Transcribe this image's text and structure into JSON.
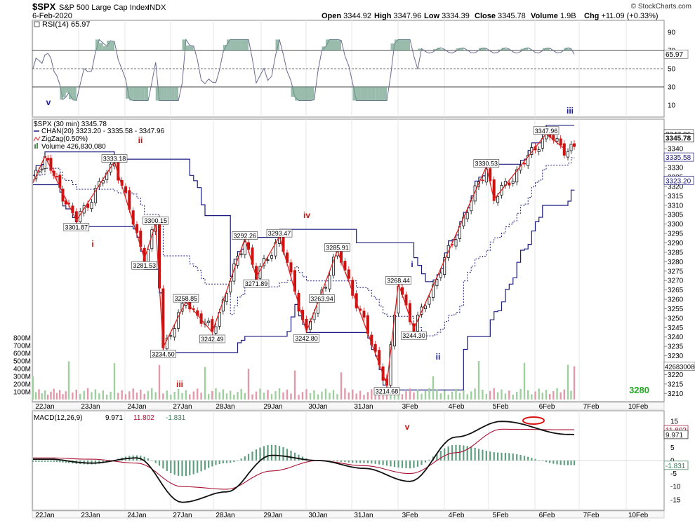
{
  "header": {
    "symbol": "$SPX",
    "name": "S&P 500 Large Cap Index",
    "exchange": "INDX",
    "date": "6-Feb-2020",
    "watermark": "© StockCharts.com",
    "ohlc": [
      {
        "label": "Open",
        "value": "3344.92"
      },
      {
        "label": "High",
        "value": "3347.96"
      },
      {
        "label": "Low",
        "value": "3334.39"
      },
      {
        "label": "Close",
        "value": "3345.78"
      },
      {
        "label": "Volume",
        "value": "1.9B"
      },
      {
        "label": "Chg",
        "value": "+11.09 (+0.33%)"
      }
    ]
  },
  "rsi": {
    "legend": "RSI(14) 65.97",
    "value": 65.97,
    "value_label": "65.97",
    "ticks": [
      90,
      70,
      50,
      30,
      10
    ],
    "levels": [
      70,
      50,
      30
    ],
    "range": [
      0,
      100
    ]
  },
  "price": {
    "legend_title": "$SPX (30 min) 3345.78",
    "legend_chan": "CHAN(20) 3323.20 - 3335.58 - 3347.96",
    "legend_zigzag": "ZigZag(0.50%)",
    "legend_volume": "Volume 426,830,080",
    "right_labels": [
      {
        "text": "3347.96",
        "value": 3347.96
      },
      {
        "text": "3345.78",
        "value": 3345.78
      },
      {
        "text": "3335.58",
        "value": 3335.58
      },
      {
        "text": "3323.20",
        "value": 3323.2
      }
    ],
    "volume_last_label": "426830080",
    "range": [
      3207.5,
      3352
    ],
    "ticks": [
      3340,
      3335,
      3330,
      3325,
      3320,
      3315,
      3310,
      3305,
      3300,
      3295,
      3290,
      3285,
      3280,
      3275,
      3270,
      3265,
      3260,
      3255,
      3250,
      3245,
      3240,
      3235,
      3230,
      3225,
      3220,
      3215,
      3210
    ],
    "volume_ticks": [
      "800M",
      "700M",
      "600M",
      "500M",
      "400M",
      "300M",
      "200M",
      "100M"
    ],
    "target_label": "3280",
    "colors": {
      "up": "#111111",
      "down": "#cc1111",
      "zigzag": "#dd2222",
      "channel": "#1a1a80",
      "vol_up": "#9fcf9f",
      "vol_down": "#e29aaa",
      "target": "#22aa22",
      "wave_blue": "#1a1aa0",
      "wave_red": "#cc1111"
    }
  },
  "x_labels": [
    "22Jan",
    "23Jan",
    "24Jan",
    "27Jan",
    "28Jan",
    "29Jan",
    "30Jan",
    "31Jan",
    "3Feb",
    "4Feb",
    "5Feb",
    "6Feb",
    "7Feb",
    "10Feb"
  ],
  "chart_data": [
    {
      "type": "line",
      "title": "RSI(14)",
      "x": [
        "22Jan",
        "23Jan",
        "24Jan",
        "27Jan",
        "28Jan",
        "29Jan",
        "30Jan",
        "31Jan",
        "3Feb",
        "4Feb",
        "5Feb",
        "6Feb"
      ],
      "series": [
        {
          "name": "RSI(14)",
          "values": [
            62,
            48,
            55,
            28,
            40,
            58,
            50,
            42,
            35,
            58,
            72,
            66
          ]
        }
      ],
      "ylim": [
        0,
        100
      ]
    },
    {
      "type": "line",
      "title": "$SPX (30 min) 3345.78",
      "x": [
        "22Jan",
        "23Jan",
        "24Jan",
        "27Jan",
        "28Jan",
        "29Jan",
        "30Jan",
        "31Jan",
        "3Feb",
        "4Feb",
        "5Feb",
        "6Feb"
      ],
      "zigzag_points": [
        {
          "label": "",
          "value": 3322,
          "time": "21Jan"
        },
        {
          "label": "",
          "value": 3336,
          "time": "22Jan"
        },
        {
          "label": "3301.87",
          "value": 3301.87,
          "time": "23Jan"
        },
        {
          "label": "3333.18",
          "value": 3333.18,
          "time": "24Jan"
        },
        {
          "label": "3281.53",
          "value": 3281.53,
          "time": "24Jan"
        },
        {
          "label": "3300.15",
          "value": 3300.15,
          "time": "24Jan"
        },
        {
          "label": "3234.50",
          "value": 3234.5,
          "time": "27Jan"
        },
        {
          "label": "3258.85",
          "value": 3258.85,
          "time": "27Jan"
        },
        {
          "label": "3242.49",
          "value": 3242.49,
          "time": "28Jan"
        },
        {
          "label": "3292.26",
          "value": 3292.26,
          "time": "29Jan"
        },
        {
          "label": "3271.89",
          "value": 3271.89,
          "time": "29Jan"
        },
        {
          "label": "3293.47",
          "value": 3293.47,
          "time": "30Jan"
        },
        {
          "label": "3242.80",
          "value": 3242.8,
          "time": "30Jan"
        },
        {
          "label": "3263.94",
          "value": 3263.94,
          "time": "30Jan"
        },
        {
          "label": "3285.91",
          "value": 3285.91,
          "time": "31Jan"
        },
        {
          "label": "3214.68",
          "value": 3214.68,
          "time": "3Feb"
        },
        {
          "label": "3268.44",
          "value": 3268.44,
          "time": "3Feb"
        },
        {
          "label": "3244.30",
          "value": 3244.3,
          "time": "3Feb"
        },
        {
          "label": "3330.53",
          "value": 3330.53,
          "time": "5Feb"
        },
        {
          "label": "",
          "value": 3313,
          "time": "5Feb"
        },
        {
          "label": "3347.96",
          "value": 3347.96,
          "time": "6Feb"
        },
        {
          "label": "",
          "value": 3340,
          "time": "6Feb"
        }
      ],
      "wave_labels": [
        {
          "text": "v",
          "color": "blue"
        },
        {
          "text": "i",
          "color": "red"
        },
        {
          "text": "ii",
          "color": "red"
        },
        {
          "text": "iii",
          "color": "red"
        },
        {
          "text": "iv",
          "color": "red"
        },
        {
          "text": "v",
          "color": "red"
        },
        {
          "text": "i",
          "color": "blue"
        },
        {
          "text": "ii",
          "color": "blue"
        },
        {
          "text": "iii",
          "color": "blue"
        }
      ],
      "ylim": [
        3207.5,
        3352
      ]
    },
    {
      "type": "line",
      "title": "MACD(12,26,9) 9.971, 11.802, -1.831",
      "x": [
        "22Jan",
        "23Jan",
        "24Jan",
        "27Jan",
        "28Jan",
        "29Jan",
        "30Jan",
        "31Jan",
        "3Feb",
        "4Feb",
        "5Feb",
        "6Feb"
      ],
      "series": [
        {
          "name": "MACD(12,26,9)",
          "values": [
            0.5,
            -1,
            1,
            -16,
            -12,
            2,
            0,
            -3,
            -8,
            9,
            15,
            10
          ]
        },
        {
          "name": "signal",
          "values": [
            1,
            0.5,
            -1,
            -10,
            -11,
            -4,
            0,
            -2,
            -5,
            3,
            12,
            11.8
          ]
        },
        {
          "name": "histogram",
          "values": [
            -0.5,
            -1.5,
            2,
            -6,
            -1,
            6,
            0,
            -1,
            -3,
            6,
            3,
            -1.8
          ]
        }
      ],
      "ylim": [
        -18,
        18
      ]
    }
  ],
  "macd": {
    "legend_title": "MACD(12,26,9)",
    "legend_macd": "9.971",
    "legend_signal": "11.802",
    "legend_hist": "-1.831",
    "ticks": [
      "15",
      "10",
      "5",
      "0",
      "-5",
      "-10",
      "-15"
    ],
    "right_labels": [
      {
        "text": "11.802",
        "value": 11.802
      },
      {
        "text": "9.971",
        "value": 9.971
      },
      {
        "text": "-1.831",
        "value": -1.831
      }
    ],
    "range": [
      -18,
      18
    ],
    "colors": {
      "macd": "#111111",
      "signal": "#aa1133",
      "hist": "#5f9f7f",
      "ellipse": "#dd1111"
    }
  }
}
